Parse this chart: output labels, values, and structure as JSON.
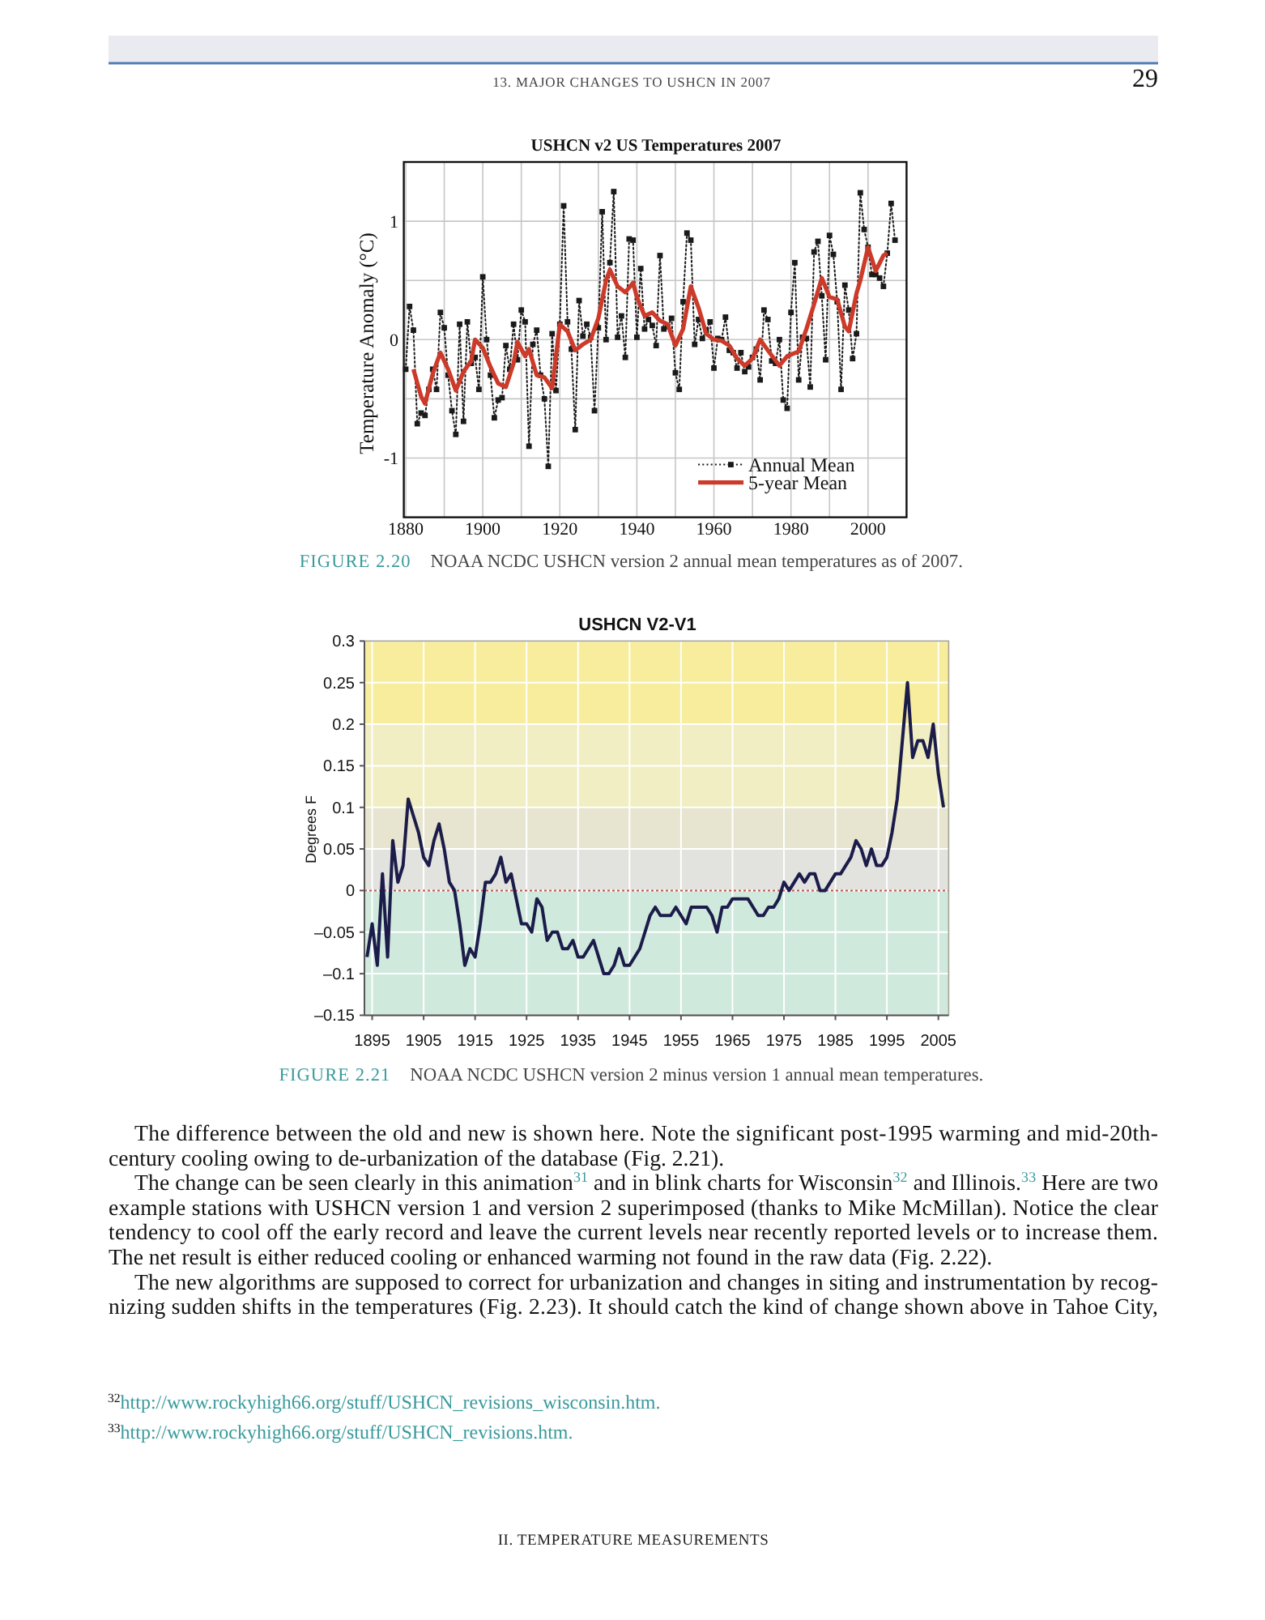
{
  "chart_data": [
    {
      "type": "other",
      "annotations": [
        "13. MAJOR CHANGES TO USHCN IN 2007",
        "29"
      ]
    },
    {
      "type": "line",
      "title": "USHCN v2 US Temperatures 2007",
      "ylabel": "Temperature Anomaly (°C)",
      "annotations": [
        "FIGURE 2.20",
        "NOAA NCDC USHCN version 2 annual mean temperatures as of 2007."
      ],
      "x": [
        1880,
        1881,
        1882,
        1883,
        1884,
        1885,
        1886,
        1887,
        1888,
        1889,
        1890,
        1891,
        1892,
        1893,
        1894,
        1895,
        1896,
        1897,
        1898,
        1899,
        1900,
        1901,
        1902,
        1903,
        1904,
        1905,
        1906,
        1907,
        1908,
        1909,
        1910,
        1911,
        1912,
        1913,
        1914,
        1915,
        1916,
        1917,
        1918,
        1919,
        1920,
        1921,
        1922,
        1923,
        1924,
        1925,
        1926,
        1927,
        1928,
        1929,
        1930,
        1931,
        1932,
        1933,
        1934,
        1935,
        1936,
        1937,
        1938,
        1939,
        1940,
        1941,
        1942,
        1943,
        1944,
        1945,
        1946,
        1947,
        1948,
        1949,
        1950,
        1951,
        1952,
        1953,
        1954,
        1955,
        1956,
        1957,
        1958,
        1959,
        1960,
        1961,
        1962,
        1963,
        1964,
        1965,
        1966,
        1967,
        1968,
        1969,
        1970,
        1971,
        1972,
        1973,
        1974,
        1975,
        1976,
        1977,
        1978,
        1979,
        1980,
        1981,
        1982,
        1983,
        1984,
        1985,
        1986,
        1987,
        1988,
        1989,
        1990,
        1991,
        1992,
        1993,
        1994,
        1995,
        1996,
        1997,
        1998,
        1999,
        2000,
        2001,
        2002,
        2003,
        2004,
        2005,
        2006,
        2007
      ],
      "xlim": [
        1879.5,
        2010
      ],
      "xticks": [
        1880,
        {
          "value": 1890,
          "label": null
        },
        1900,
        {
          "value": 1910,
          "label": null
        },
        1920,
        {
          "value": 1930,
          "label": null
        },
        1940,
        {
          "value": 1950,
          "label": null
        },
        1960,
        {
          "value": 1970,
          "label": null
        },
        1980,
        {
          "value": 1990,
          "label": null
        },
        2000
      ],
      "ylim": [
        -1.5,
        1.5
      ],
      "yticks": [
        -1,
        {
          "value": -0.5,
          "label": null
        },
        0,
        {
          "value": 0.5,
          "label": null
        },
        1
      ],
      "grid": true,
      "legend": "bottom right",
      "series": [
        {
          "name": "Annual Mean",
          "color": "#1a1a1a",
          "marker": "square",
          "line_style": "dotted",
          "values": [
            -0.25,
            0.28,
            0.08,
            -0.71,
            -0.62,
            -0.64,
            -0.42,
            -0.25,
            -0.42,
            0.23,
            0.1,
            -0.3,
            -0.6,
            -0.8,
            0.13,
            -0.69,
            0.15,
            -0.2,
            -0.15,
            -0.42,
            0.53,
            0.0,
            -0.3,
            -0.66,
            -0.51,
            -0.49,
            -0.05,
            -0.25,
            0.13,
            -0.17,
            0.25,
            0.15,
            -0.9,
            -0.04,
            0.08,
            -0.3,
            -0.5,
            -1.07,
            0.05,
            -0.43,
            0.13,
            1.13,
            0.15,
            -0.08,
            -0.76,
            0.33,
            0.03,
            0.13,
            0.02,
            -0.6,
            0.1,
            1.08,
            0.0,
            0.65,
            1.25,
            0.02,
            0.2,
            -0.15,
            0.85,
            0.84,
            0.02,
            0.6,
            0.09,
            0.17,
            0.12,
            -0.05,
            0.71,
            0.09,
            0.11,
            0.18,
            -0.28,
            -0.42,
            0.32,
            0.9,
            0.84,
            -0.04,
            0.17,
            0.01,
            0.08,
            0.15,
            -0.24,
            0.01,
            0.0,
            0.19,
            -0.09,
            -0.11,
            -0.24,
            -0.11,
            -0.27,
            -0.23,
            -0.15,
            -0.08,
            -0.34,
            0.25,
            0.17,
            -0.18,
            -0.2,
            0.0,
            -0.51,
            -0.58,
            0.23,
            0.65,
            -0.34,
            0.02,
            0.01,
            -0.4,
            0.74,
            0.83,
            0.37,
            -0.17,
            0.88,
            0.72,
            0.32,
            -0.42,
            0.46,
            0.25,
            -0.16,
            0.05,
            1.24,
            0.93,
            0.78,
            0.55,
            0.55,
            0.52,
            0.45,
            0.73,
            1.15,
            0.84
          ]
        },
        {
          "name": "5-year Mean",
          "color": "#cc3a2a",
          "x": [
            1882,
            1884,
            1885,
            1887,
            1889,
            1891,
            1893,
            1895,
            1897,
            1898,
            1900,
            1902,
            1904,
            1906,
            1908,
            1909,
            1911,
            1912,
            1914,
            1916,
            1918,
            1920,
            1922,
            1924,
            1926,
            1928,
            1930,
            1932,
            1933,
            1935,
            1937,
            1939,
            1940,
            1942,
            1944,
            1946,
            1948,
            1950,
            1952,
            1954,
            1956,
            1958,
            1960,
            1962,
            1964,
            1966,
            1968,
            1970,
            1972,
            1974,
            1977,
            1979,
            1982,
            1984,
            1986,
            1988,
            1990,
            1992,
            1994,
            1995,
            1997,
            1998,
            2000,
            2001,
            2002,
            2004,
            2005
          ],
          "values": [
            -0.25,
            -0.48,
            -0.54,
            -0.29,
            -0.11,
            -0.25,
            -0.43,
            -0.27,
            -0.18,
            0.0,
            -0.07,
            -0.23,
            -0.37,
            -0.4,
            -0.2,
            -0.02,
            -0.14,
            -0.08,
            -0.3,
            -0.32,
            -0.41,
            0.13,
            0.07,
            -0.09,
            -0.04,
            0.0,
            0.18,
            0.5,
            0.59,
            0.45,
            0.4,
            0.48,
            0.36,
            0.2,
            0.23,
            0.16,
            0.13,
            -0.05,
            0.09,
            0.45,
            0.27,
            0.05,
            0.0,
            -0.01,
            -0.05,
            -0.16,
            -0.22,
            -0.16,
            0.0,
            -0.09,
            -0.22,
            -0.14,
            -0.1,
            0.09,
            0.3,
            0.52,
            0.36,
            0.34,
            0.11,
            0.07,
            0.39,
            0.5,
            0.78,
            0.68,
            0.58,
            0.71,
            0.73
          ]
        }
      ]
    },
    {
      "type": "line",
      "title": "USHCN V2-V1",
      "ylabel": "Degrees F",
      "annotations": [
        "FIGURE 2.21",
        "NOAA NCDC USHCN version 2 minus version 1 annual mean temperatures."
      ],
      "x": [
        1894,
        1895,
        1896,
        1897,
        1898,
        1899,
        1900,
        1901,
        1902,
        1903,
        1904,
        1905,
        1906,
        1907,
        1908,
        1909,
        1910,
        1911,
        1912,
        1913,
        1914,
        1915,
        1916,
        1917,
        1918,
        1919,
        1920,
        1921,
        1922,
        1923,
        1924,
        1925,
        1926,
        1927,
        1928,
        1929,
        1930,
        1931,
        1932,
        1933,
        1934,
        1935,
        1936,
        1937,
        1938,
        1939,
        1940,
        1941,
        1942,
        1943,
        1944,
        1945,
        1946,
        1947,
        1948,
        1949,
        1950,
        1951,
        1952,
        1953,
        1954,
        1955,
        1956,
        1957,
        1958,
        1959,
        1960,
        1961,
        1962,
        1963,
        1964,
        1965,
        1966,
        1967,
        1968,
        1969,
        1970,
        1971,
        1972,
        1973,
        1974,
        1975,
        1976,
        1977,
        1978,
        1979,
        1980,
        1981,
        1982,
        1983,
        1984,
        1985,
        1986,
        1987,
        1988,
        1989,
        1990,
        1991,
        1992,
        1993,
        1994,
        1995,
        1996,
        1997,
        1998,
        1999,
        2000,
        2001,
        2002,
        2003,
        2004,
        2005,
        2006
      ],
      "xlim": [
        1893.5,
        2007
      ],
      "xticks": [
        1895,
        1905,
        1915,
        1925,
        1935,
        1945,
        1955,
        1965,
        1975,
        1985,
        1995,
        2005
      ],
      "ylim": [
        -0.15,
        0.3
      ],
      "yticks": [
        {
          "value": -0.15,
          "label": "–0.15"
        },
        {
          "value": -0.1,
          "label": "–0.1"
        },
        {
          "value": -0.05,
          "label": "–0.05"
        },
        0,
        0.05,
        0.1,
        0.15,
        0.2,
        0.25,
        0.3
      ],
      "grid": true,
      "bands": [
        {
          "axis": "y",
          "from": 0.2,
          "to": 0.3,
          "color": "#f8ed9c"
        },
        {
          "axis": "y",
          "from": 0.1,
          "to": 0.2,
          "color": "#f1eec4"
        },
        {
          "axis": "y",
          "from": 0.05,
          "to": 0.1,
          "color": "#e7e5cf"
        },
        {
          "axis": "y",
          "from": 0,
          "to": 0.05,
          "color": "#e2e2df"
        },
        {
          "axis": "y",
          "from": -0.15,
          "to": 0,
          "color": "#d0e9dd"
        }
      ],
      "ref_lines": [
        {
          "axis": "y",
          "value": 0,
          "color": "#c0504d",
          "line_style": "dotted"
        }
      ],
      "series": [
        {
          "color": "#1c1c4a",
          "values": [
            -0.08,
            -0.04,
            -0.09,
            0.02,
            -0.08,
            0.06,
            0.01,
            0.03,
            0.11,
            0.09,
            0.07,
            0.04,
            0.03,
            0.06,
            0.08,
            0.05,
            0.01,
            0.0,
            -0.04,
            -0.09,
            -0.07,
            -0.08,
            -0.04,
            0.01,
            0.01,
            0.02,
            0.04,
            0.01,
            0.02,
            -0.01,
            -0.04,
            -0.04,
            -0.05,
            -0.01,
            -0.02,
            -0.06,
            -0.05,
            -0.05,
            -0.07,
            -0.07,
            -0.06,
            -0.08,
            -0.08,
            -0.07,
            -0.06,
            -0.08,
            -0.1,
            -0.1,
            -0.09,
            -0.07,
            -0.09,
            -0.09,
            -0.08,
            -0.07,
            -0.05,
            -0.03,
            -0.02,
            -0.03,
            -0.03,
            -0.03,
            -0.02,
            -0.03,
            -0.04,
            -0.02,
            -0.02,
            -0.02,
            -0.02,
            -0.03,
            -0.05,
            -0.02,
            -0.02,
            -0.01,
            -0.01,
            -0.01,
            -0.01,
            -0.02,
            -0.03,
            -0.03,
            -0.02,
            -0.02,
            -0.01,
            0.01,
            0.0,
            0.01,
            0.02,
            0.01,
            0.02,
            0.02,
            0.0,
            0.0,
            0.01,
            0.02,
            0.02,
            0.03,
            0.04,
            0.06,
            0.05,
            0.03,
            0.05,
            0.03,
            0.03,
            0.04,
            0.07,
            0.11,
            0.18,
            0.25,
            0.16,
            0.18,
            0.18,
            0.16,
            0.2,
            0.14,
            0.1
          ]
        }
      ]
    },
    {
      "type": "other",
      "annotations": [
        "The difference between the old and new is shown here. Note the significant post-1995 warming and mid-20th-",
        "century cooling owing to de-urbanization of the database (Fig. 2.21).",
        "The change can be seen clearly in this animation$^{31}$ and in blink charts for Wisconsin$^{32}$ and Illinois.$^{33}$ Here are two",
        "example stations with USHCN version 1 and version 2 superimposed (thanks to Mike McMillan). Notice the clear",
        "tendency to cool off the early record and leave the current levels near recently reported levels or to increase them.",
        "The net result is either reduced cooling or enhanced warming not found in the raw data (Fig. 2.22).",
        "The new algorithms are supposed to correct for urbanization and changes in siting and instrumentation by recog-",
        "nizing sudden shifts in the temperatures (Fig. 2.23). It should catch the kind of change shown above in Tahoe City,"
      ]
    },
    {
      "type": "other",
      "annotations": [
        "$^{32}$http://www.rockyhigh66.org/stuff/USHCN_revisions_wisconsin.htm.",
        "$^{33}$http://www.rockyhigh66.org/stuff/USHCN_revisions.htm."
      ]
    },
    {
      "type": "other",
      "annotations": [
        "II. TEMPERATURE MEASUREMENTS"
      ]
    }
  ]
}
